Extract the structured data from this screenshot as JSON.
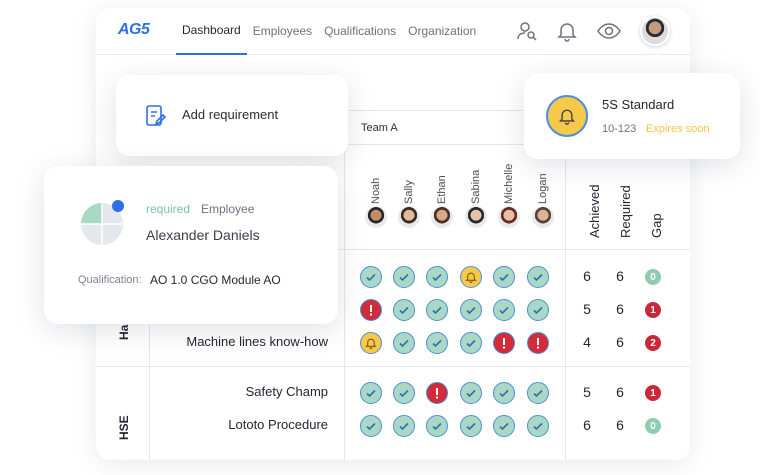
{
  "logo": "AG5",
  "nav": {
    "items": [
      "Dashboard",
      "Employees",
      "Qualifications",
      "Organization"
    ],
    "active": 0
  },
  "colors": {
    "accent": "#2d6fe8",
    "ok": "#a9d9c6",
    "error": "#d22b3a",
    "warning": "#f6c94b",
    "expires": "#f2c548"
  },
  "icons": [
    "user-search-icon",
    "bell-icon",
    "eye-icon"
  ],
  "add_requirement": {
    "label": "Add requirement",
    "icon": "clipboard-edit-icon"
  },
  "notification": {
    "title": "5S Standard",
    "code": "10-123",
    "status": "Expires soon",
    "icon": "bell-icon"
  },
  "employee_card": {
    "required_label": "required",
    "role": "Employee",
    "name": "Alexander Daniels",
    "qualification_label": "Qualification:",
    "qualification_value": "AO 1.0 CGO Module AO"
  },
  "matrix": {
    "team": "Team A",
    "employees": [
      "Noah",
      "Sally",
      "Ethan",
      "Sabina",
      "Michelle",
      "Logan"
    ],
    "headers": {
      "achieved": "Achieved",
      "required": "Required",
      "gap": "Gap"
    },
    "groups": [
      {
        "name": "Ha",
        "rows": [
          {
            "label": "",
            "cells": [
              "ok",
              "ok",
              "ok",
              "warn",
              "ok",
              "ok"
            ],
            "achieved": "6",
            "required": "6",
            "gap": "0"
          },
          {
            "label": "",
            "cells": [
              "bad",
              "ok",
              "ok",
              "ok",
              "ok",
              "ok"
            ],
            "achieved": "5",
            "required": "6",
            "gap": "1"
          },
          {
            "label": "Machine lines know-how",
            "cells": [
              "warn",
              "ok",
              "ok",
              "ok",
              "bad",
              "bad"
            ],
            "achieved": "4",
            "required": "6",
            "gap": "2"
          }
        ]
      },
      {
        "name": "HSE",
        "rows": [
          {
            "label": "Safety Champ",
            "cells": [
              "ok",
              "ok",
              "bad",
              "ok",
              "ok",
              "ok"
            ],
            "achieved": "5",
            "required": "6",
            "gap": "1"
          },
          {
            "label": "Lototo Procedure",
            "cells": [
              "ok",
              "ok",
              "ok",
              "ok",
              "ok",
              "ok"
            ],
            "achieved": "6",
            "required": "6",
            "gap": "0"
          }
        ]
      }
    ]
  }
}
